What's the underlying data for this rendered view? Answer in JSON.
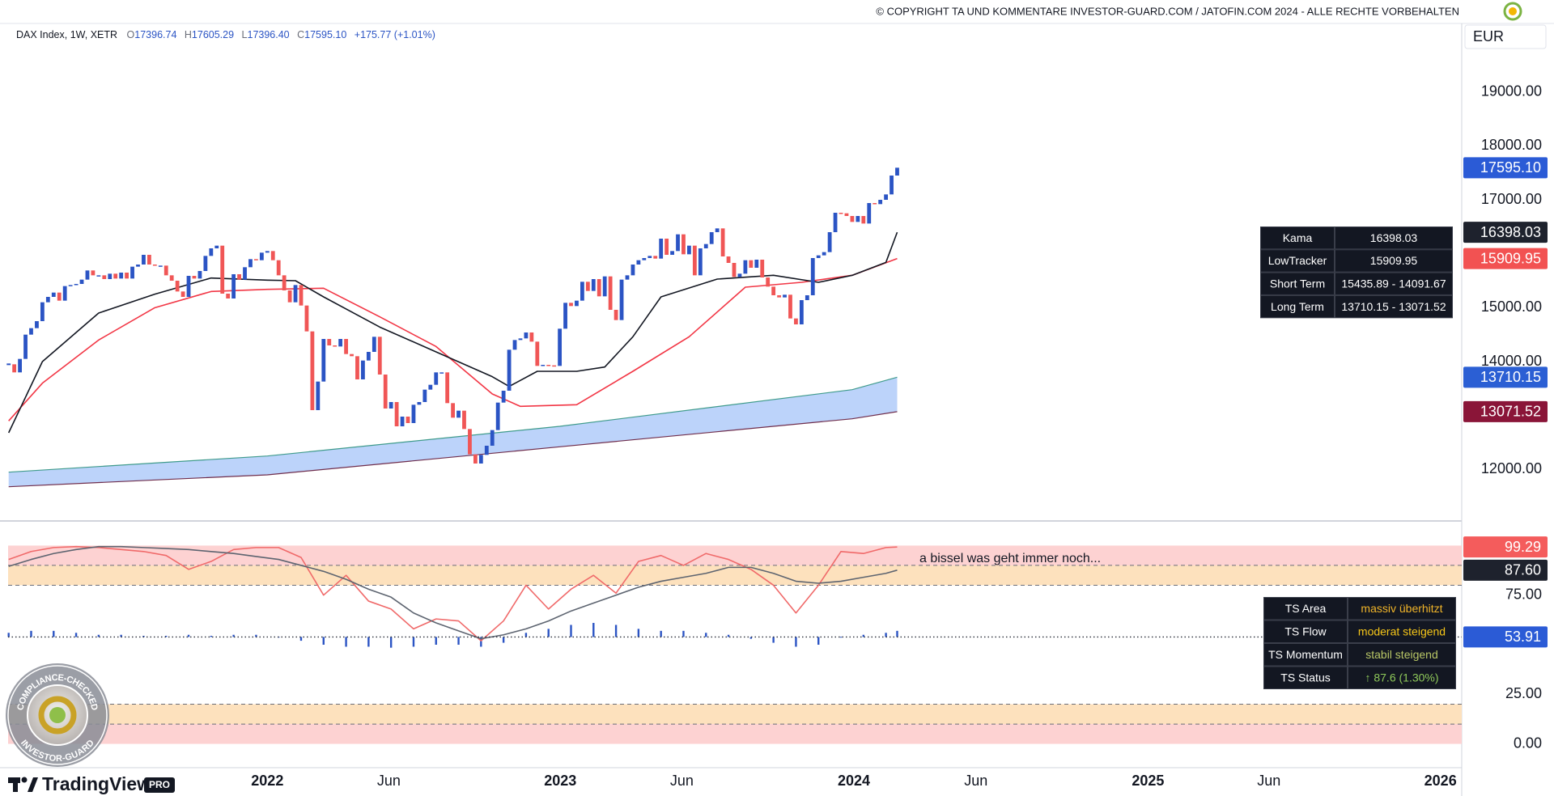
{
  "copyright": "© COPYRIGHT TA UND KOMMENTARE INVESTOR-GUARD.COM / JATOFIN.COM 2024 - ALLE RECHTE VORBEHALTEN",
  "header": {
    "symbol": "DAX Index, 1W, XETR",
    "ohlc": [
      {
        "label": "O",
        "value": "17396.74"
      },
      {
        "label": "H",
        "value": "17605.29"
      },
      {
        "label": "L",
        "value": "17396.40"
      },
      {
        "label": "C",
        "value": "17595.10"
      }
    ],
    "change": "+175.77 (+1.01%)"
  },
  "currency": "EUR",
  "logo": {
    "name": "TradingView",
    "badge": "PRO"
  },
  "seal": {
    "top": "COMPLIANCE-CHECKED",
    "bottom": "INVESTOR-GUARD"
  },
  "chart_data": [
    {
      "type": "candlestick",
      "xlim": [
        -46.1,
        212.1
      ],
      "xticks": [
        {
          "value": 0,
          "label": "2022"
        },
        {
          "value": 21.6,
          "label": "Jun"
        },
        {
          "value": 52.1,
          "label": "2023"
        },
        {
          "value": 73.7,
          "label": "Jun"
        },
        {
          "value": 104.3,
          "label": "2024"
        },
        {
          "value": 126,
          "label": "Jun"
        },
        {
          "value": 156.6,
          "label": "2025"
        },
        {
          "value": 178.1,
          "label": "Jun"
        },
        {
          "value": 208.6,
          "label": "2026"
        }
      ],
      "ylim": [
        11060,
        20270
      ],
      "yticks": [
        {
          "value": 12000,
          "label": "12000.00"
        },
        {
          "value": 14000,
          "label": "14000.00"
        },
        {
          "value": 15000,
          "label": "15000.00"
        },
        {
          "value": 17000,
          "label": "17000.00"
        },
        {
          "value": 18000,
          "label": "18000.00"
        },
        {
          "value": 19000,
          "label": "19000.00"
        }
      ],
      "grid": false,
      "series": [
        {
          "type": "band",
          "color": "#bcd3fa",
          "upper_color": "#3f9b8c",
          "lower_color": "#6f2d4c",
          "x": [
            -46,
            0,
            52,
            104,
            112
          ],
          "upper": [
            11950,
            12250,
            12800,
            13480,
            13710.15
          ],
          "lower": [
            11680,
            11900,
            12420,
            12940,
            13071.52
          ]
        },
        {
          "type": "line",
          "color": "#f23645",
          "x": [
            -46,
            -40,
            -30,
            -20,
            -10,
            0,
            10,
            20,
            30,
            40,
            45,
            55,
            65,
            75,
            85,
            95,
            104,
            112
          ],
          "values": [
            12900,
            13600,
            14400,
            15000,
            15300,
            15340,
            15360,
            14830,
            14280,
            13400,
            13170,
            13200,
            13820,
            14460,
            15380,
            15470,
            15600,
            15909.95
          ]
        },
        {
          "type": "line",
          "color": "#131722",
          "x": [
            -46,
            -40,
            -30,
            -20,
            -10,
            0,
            5,
            10,
            20,
            30,
            40,
            43,
            48,
            55,
            60,
            65,
            70,
            80,
            90,
            98,
            104,
            110,
            112
          ],
          "values": [
            12680,
            14000,
            14900,
            15250,
            15550,
            15510,
            15500,
            15200,
            14640,
            14180,
            13720,
            13540,
            13820,
            13820,
            13900,
            14460,
            15200,
            15530,
            15600,
            15470,
            15600,
            15840,
            16398.03
          ]
        },
        {
          "type": "candlestick",
          "up_color": "#2b54c4",
          "down_color": "#f05656",
          "x": [
            -46,
            -45,
            -44,
            -43,
            -42,
            -41,
            -40,
            -39,
            -38,
            -37,
            -36,
            -35,
            -34,
            -33,
            -32,
            -31,
            -30,
            -29,
            -28,
            -27,
            -26,
            -25,
            -24,
            -23,
            -22,
            -21,
            -20,
            -19,
            -18,
            -17,
            -16,
            -15,
            -14,
            -13,
            -12,
            -11,
            -10,
            -9,
            -8,
            -7,
            -6,
            -5,
            -4,
            -3,
            -2,
            -1,
            0,
            1,
            2,
            3,
            4,
            5,
            6,
            7,
            8,
            9,
            10,
            11,
            12,
            13,
            14,
            15,
            16,
            17,
            18,
            19,
            20,
            21,
            22,
            23,
            24,
            25,
            26,
            27,
            28,
            29,
            30,
            31,
            32,
            33,
            34,
            35,
            36,
            37,
            38,
            39,
            40,
            41,
            42,
            43,
            44,
            45,
            46,
            47,
            48,
            49,
            50,
            51,
            52,
            53,
            54,
            55,
            56,
            57,
            58,
            59,
            60,
            61,
            62,
            63,
            64,
            65,
            66,
            67,
            68,
            69,
            70,
            71,
            72,
            73,
            74,
            75,
            76,
            77,
            78,
            79,
            80,
            81,
            82,
            83,
            84,
            85,
            86,
            87,
            88,
            89,
            90,
            91,
            92,
            93,
            94,
            95,
            96,
            97,
            98,
            99,
            100,
            101,
            102,
            103,
            104,
            105,
            106,
            107,
            108,
            109,
            110,
            111,
            112
          ],
          "values": [
            13950,
            13800,
            14050,
            14500,
            14620,
            14750,
            15100,
            15200,
            15280,
            15130,
            15400,
            15420,
            15440,
            15520,
            15690,
            15600,
            15600,
            15530,
            15630,
            15540,
            15650,
            15540,
            15760,
            15800,
            15980,
            15800,
            15780,
            15780,
            15600,
            15500,
            15300,
            15200,
            15590,
            15540,
            15680,
            15960,
            16100,
            16150,
            15260,
            15170,
            15620,
            15520,
            15750,
            15900,
            15880,
            16020,
            16050,
            15880,
            15600,
            15320,
            15100,
            15420,
            15040,
            14560,
            13100,
            13630,
            14420,
            14300,
            14280,
            14420,
            14140,
            14100,
            13670,
            14020,
            14180,
            14460,
            13760,
            13130,
            13250,
            12800,
            12980,
            12860,
            13200,
            13250,
            13480,
            13570,
            13800,
            13800,
            13230,
            12960,
            13090,
            12750,
            12280,
            12110,
            12270,
            12440,
            12730,
            13240,
            13460,
            14220,
            14400,
            14430,
            14540,
            14370,
            13920,
            13940,
            13930,
            13920,
            14610,
            15090,
            15030,
            15130,
            15480,
            15310,
            15530,
            15210,
            15580,
            14960,
            14770,
            15520,
            15600,
            15800,
            15880,
            15920,
            15960,
            15910,
            16280,
            15980,
            16050,
            16360,
            15990,
            16150,
            15600,
            16100,
            16180,
            16400,
            16470,
            15950,
            15830,
            15570,
            15630,
            15880,
            15740,
            15890,
            15560,
            15390,
            15230,
            15190,
            15240,
            14800,
            14690,
            15140,
            15230,
            15920,
            15970,
            16030,
            16400,
            16760,
            16750,
            16700,
            16590,
            16700,
            16560,
            16940,
            16920,
            17000,
            17100,
            17450,
            17595.1
          ]
        }
      ],
      "tags": [
        {
          "value": 17595.1,
          "label": "17595.10",
          "color": "#2b5bd6"
        },
        {
          "value": 16398.03,
          "label": "16398.03",
          "color": "#1e222d"
        },
        {
          "value": 15909.95,
          "label": "15909.95",
          "color": "#f25252"
        },
        {
          "value": 13710.15,
          "label": "13710.15",
          "color": "#2b5fd4"
        },
        {
          "value": 13071.52,
          "label": "13071.52",
          "color": "#8a1538"
        }
      ]
    },
    {
      "type": "oscillator",
      "ylim": [
        -12,
        112
      ],
      "yticks": [
        {
          "value": 0,
          "label": "0.00"
        },
        {
          "value": 25,
          "label": "25.00"
        },
        {
          "value": 75,
          "label": "75.00"
        }
      ],
      "zones": [
        {
          "from": 90,
          "to": 100,
          "color": "#fdd2d2"
        },
        {
          "from": 80,
          "to": 90,
          "color": "#fde1bd"
        },
        {
          "from": 10,
          "to": 20,
          "color": "#fde1bd"
        },
        {
          "from": 0,
          "to": 10,
          "color": "#fdd2d2"
        }
      ],
      "levels": [
        90,
        80,
        20,
        10
      ],
      "x": [
        -46,
        -42,
        -38,
        -34,
        -30,
        -26,
        -22,
        -18,
        -14,
        -10,
        -6,
        -2,
        2,
        6,
        10,
        14,
        18,
        22,
        26,
        30,
        34,
        38,
        42,
        46,
        50,
        54,
        58,
        62,
        66,
        70,
        74,
        78,
        82,
        86,
        90,
        94,
        98,
        102,
        106,
        110,
        112
      ],
      "series": [
        {
          "type": "histogram",
          "color": "#2b54c4",
          "values": [
            56,
            57,
            57,
            56,
            55,
            55,
            54.5,
            54.5,
            55,
            54.5,
            55,
            55,
            54,
            52,
            50,
            49,
            49,
            48.5,
            49,
            50,
            50,
            49,
            51,
            56,
            58,
            60,
            61,
            60,
            58,
            57,
            57,
            56,
            55,
            53,
            51,
            49,
            50,
            54,
            55,
            56,
            57
          ]
        },
        {
          "type": "line",
          "color": "#f06a6a",
          "values": [
            93,
            97,
            99,
            99.5,
            99,
            98,
            97,
            95,
            88,
            92,
            98,
            99,
            99,
            94,
            75,
            85,
            72,
            68,
            58,
            63,
            62,
            52,
            62,
            80,
            68,
            78,
            85,
            76,
            92,
            95,
            90,
            96,
            93,
            88,
            80,
            66,
            80,
            97,
            96,
            99,
            99.29
          ]
        },
        {
          "type": "line",
          "color": "#5d6470",
          "values": [
            89.5,
            93,
            96,
            98,
            99.5,
            99.5,
            99,
            98.5,
            98,
            97,
            96,
            94.5,
            93,
            90,
            87,
            83,
            78,
            74,
            66,
            61,
            57,
            53,
            55,
            58,
            62,
            67,
            71,
            75,
            79,
            82,
            84,
            86,
            89,
            89,
            86,
            82,
            81,
            82,
            84,
            86,
            87.6
          ]
        }
      ],
      "tags": [
        {
          "value": 99.29,
          "label": "99.29",
          "color": "#f45c5c"
        },
        {
          "value": 87.6,
          "label": "87.60",
          "color": "#1e222d"
        },
        {
          "value": 53.91,
          "label": "53.91",
          "color": "#2b5bd6",
          "dotted": true
        }
      ],
      "annotation": "a bissel was geht immer noch..."
    }
  ],
  "price_table": {
    "rows": [
      [
        "Kama",
        "16398.03"
      ],
      [
        "LowTracker",
        "15909.95"
      ],
      [
        "Short Term",
        "15435.89 - 14091.67"
      ],
      [
        "Long Term",
        "13710.15 - 13071.52"
      ]
    ]
  },
  "ts_table": {
    "rows": [
      [
        "TS Area",
        "massiv überhitzt"
      ],
      [
        "TS Flow",
        "moderat steigend"
      ],
      [
        "TS Momentum",
        "stabil steigend"
      ],
      [
        "TS Status",
        "↑ 87.6 (1.30%)"
      ]
    ],
    "colors": [
      "#f0b429",
      "#f5c518",
      "#b9c766",
      "#8fc95a"
    ]
  }
}
